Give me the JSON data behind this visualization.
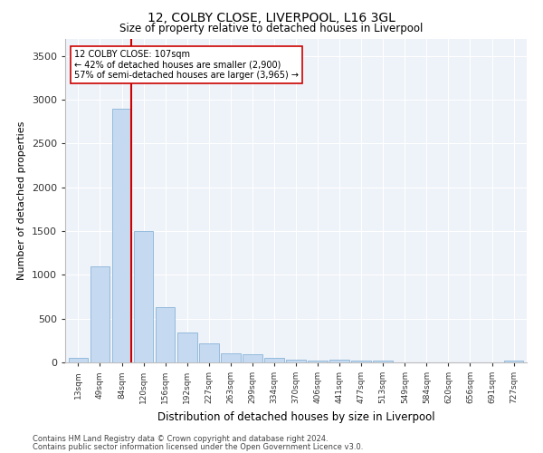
{
  "title": "12, COLBY CLOSE, LIVERPOOL, L16 3GL",
  "subtitle": "Size of property relative to detached houses in Liverpool",
  "xlabel": "Distribution of detached houses by size in Liverpool",
  "ylabel": "Number of detached properties",
  "footnote1": "Contains HM Land Registry data © Crown copyright and database right 2024.",
  "footnote2": "Contains public sector information licensed under the Open Government Licence v3.0.",
  "annotation_line1": "12 COLBY CLOSE: 107sqm",
  "annotation_line2": "← 42% of detached houses are smaller (2,900)",
  "annotation_line3": "57% of semi-detached houses are larger (3,965) →",
  "bar_color": "#c5d9f0",
  "bar_edge_color": "#8ab4d8",
  "vline_color": "#cc0000",
  "annotation_box_edge": "#cc0000",
  "background_color": "#eef2f9",
  "grid_color": "#ffffff",
  "categories": [
    "13sqm",
    "49sqm",
    "84sqm",
    "120sqm",
    "156sqm",
    "192sqm",
    "227sqm",
    "263sqm",
    "299sqm",
    "334sqm",
    "370sqm",
    "406sqm",
    "441sqm",
    "477sqm",
    "513sqm",
    "549sqm",
    "584sqm",
    "620sqm",
    "656sqm",
    "691sqm",
    "727sqm"
  ],
  "values": [
    50,
    1100,
    2900,
    1500,
    630,
    340,
    220,
    105,
    95,
    55,
    35,
    20,
    35,
    25,
    20,
    0,
    0,
    0,
    0,
    0,
    20
  ],
  "ylim": [
    0,
    3700
  ],
  "yticks": [
    0,
    500,
    1000,
    1500,
    2000,
    2500,
    3000,
    3500
  ],
  "vline_x_index": 2,
  "figsize": [
    6.0,
    5.0
  ],
  "dpi": 100
}
